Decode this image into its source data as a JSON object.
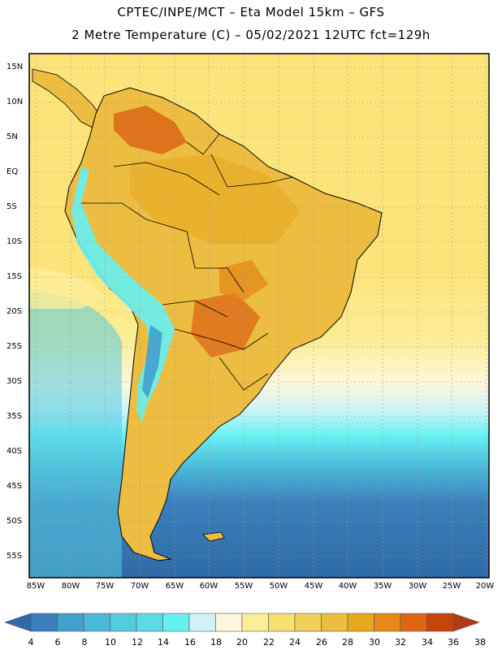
{
  "header": {
    "title_line1": "CPTEC/INPE/MCT –  Eta Model 15km – GFS",
    "title_line2": "2 Metre Temperature (C) – 05/02/2021 12UTC fct=129h"
  },
  "map": {
    "lat_labels": [
      "15N",
      "10N",
      "5N",
      "EQ",
      "5S",
      "10S",
      "15S",
      "20S",
      "25S",
      "30S",
      "35S",
      "40S",
      "45S",
      "50S",
      "55S"
    ],
    "lon_labels": [
      "85W",
      "80W",
      "75W",
      "70W",
      "65W",
      "60W",
      "55W",
      "50W",
      "45W",
      "40W",
      "35W",
      "30W",
      "25W",
      "20W"
    ]
  },
  "colorbar": {
    "labels": [
      "4",
      "6",
      "8",
      "10",
      "12",
      "14",
      "16",
      "18",
      "20",
      "22",
      "24",
      "26",
      "28",
      "30",
      "32",
      "34",
      "36",
      "38"
    ],
    "colors": [
      "#2f6aa8",
      "#3a7fbb",
      "#42a0cc",
      "#4bb8d8",
      "#55cbe0",
      "#5cdbe6",
      "#66f0f2",
      "#cff3f8",
      "#fdf6dc",
      "#fbee98",
      "#f7df72",
      "#f2cf58",
      "#ecbd40",
      "#e9a81c",
      "#e58a1a",
      "#dd6615",
      "#c54408",
      "#b23a15"
    ]
  },
  "legend_colors": {
    "ocean_warm": "#fde47a",
    "ocean_mid": "#fbee98",
    "ocean_cool_1": "#cff3f8",
    "ocean_cool_2": "#55cbe0",
    "ocean_cool_3": "#3a7fbb",
    "ocean_cold": "#2f6aa8",
    "land_hot": "#dd6615",
    "land_warm": "#ecbd40",
    "andes_cold": "#66f0f2"
  }
}
